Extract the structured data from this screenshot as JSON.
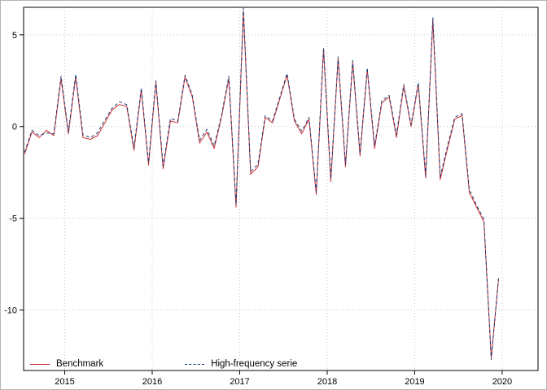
{
  "figure": {
    "background": "#ffffff",
    "border_color": "#b5b5b5"
  },
  "chart_data": {
    "type": "line",
    "title": "",
    "xlabel": "",
    "ylabel": "",
    "grid": true,
    "grid_color": "#c4c4c4",
    "axis_color": "#000000",
    "xlim": [
      2014.53,
      2020.41
    ],
    "ylim": [
      -13.3,
      6.5
    ],
    "x_ticks": [
      2015,
      2016,
      2017,
      2018,
      2019,
      2020
    ],
    "x_tick_labels": [
      "2015",
      "2016",
      "2017",
      "2018",
      "2019",
      "2020"
    ],
    "y_ticks": [
      5,
      0,
      -5,
      -10
    ],
    "y_tick_labels": [
      "5",
      "0",
      "-5",
      "-10"
    ],
    "x_start": 2014.5417,
    "x_step": 0.0833333,
    "legend_position": "bottom-left",
    "series": [
      {
        "name": "Benchmark",
        "color": "#cc3333",
        "style": "solid",
        "width": 1,
        "values": [
          -1.5,
          -0.3,
          -0.6,
          -0.2,
          -0.5,
          2.6,
          -0.4,
          2.7,
          -0.6,
          -0.7,
          -0.5,
          0.2,
          0.9,
          1.2,
          1.1,
          -1.3,
          2.0,
          -2.1,
          2.4,
          -2.3,
          0.3,
          0.2,
          2.7,
          1.6,
          -0.9,
          -0.3,
          -1.2,
          0.5,
          2.6,
          -4.4,
          6.3,
          -2.6,
          -2.2,
          0.5,
          0.2,
          1.5,
          2.8,
          0.3,
          -0.4,
          0.4,
          -3.7,
          4.2,
          -3.0,
          3.7,
          -2.2,
          3.5,
          -1.6,
          3.1,
          -1.2,
          1.3,
          1.6,
          -0.6,
          2.2,
          0.0,
          2.3,
          -2.8,
          5.8,
          -2.9,
          -1.2,
          0.4,
          0.6,
          -3.6,
          -4.4,
          -5.2,
          -12.6,
          -8.3
        ]
      },
      {
        "name": "High-frequency serie",
        "color": "#1f3a7a",
        "style": "dashed",
        "width": 1,
        "values": [
          -1.4,
          -0.2,
          -0.5,
          -0.35,
          -0.4,
          2.75,
          -0.3,
          2.85,
          -0.45,
          -0.6,
          -0.35,
          0.35,
          1.0,
          1.35,
          1.2,
          -1.15,
          2.1,
          -1.95,
          2.5,
          -2.15,
          0.45,
          0.3,
          2.8,
          1.7,
          -0.75,
          -0.15,
          -1.05,
          0.6,
          2.75,
          -4.25,
          6.45,
          -2.45,
          -2.05,
          0.6,
          0.3,
          1.6,
          2.9,
          0.4,
          -0.25,
          0.5,
          -3.55,
          4.3,
          -2.85,
          3.8,
          -2.05,
          3.6,
          -1.45,
          3.2,
          -1.05,
          1.4,
          1.7,
          -0.45,
          2.3,
          0.1,
          2.4,
          -2.65,
          5.95,
          -2.75,
          -1.05,
          0.5,
          0.7,
          -3.45,
          -4.3,
          -5.05,
          -12.7,
          -8.2
        ]
      }
    ]
  }
}
